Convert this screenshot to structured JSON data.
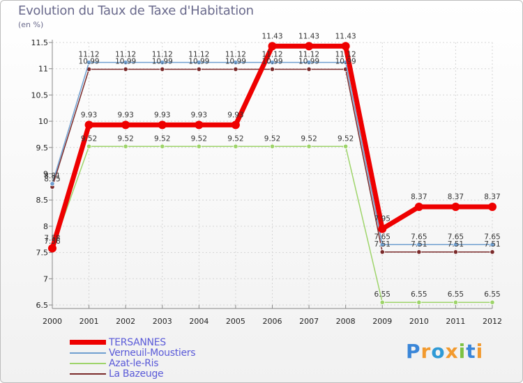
{
  "header": {
    "title": "Evolution du Taux de Taxe d'Habitation",
    "unit": "(en %)"
  },
  "brand": {
    "text": "Proxiti",
    "letters": [
      "P",
      "r",
      "o",
      "x",
      "i",
      "t",
      "i"
    ],
    "colors": [
      "#3a86d8",
      "#f29a2e",
      "#2f9ad6",
      "#f29a2e",
      "#7cc242",
      "#3a86d8",
      "#f29a2e"
    ]
  },
  "chart_data": {
    "type": "line",
    "title": "Evolution du Taux de Taxe d'Habitation",
    "ylabel": "(en %)",
    "xlabel": "",
    "ylim": [
      6.5,
      11.5
    ],
    "yticks": [
      "6.5",
      "7",
      "7.5",
      "8",
      "8.5",
      "9",
      "9.5",
      "10",
      "10.5",
      "11",
      "11.5"
    ],
    "categories": [
      "2000",
      "2001",
      "2002",
      "2003",
      "2004",
      "2005",
      "2006",
      "2007",
      "2008",
      "2009",
      "2010",
      "2011",
      "2012"
    ],
    "grid": true,
    "legend": "bottom-left",
    "series": [
      {
        "name": "TERSANNES",
        "color": "#ee0000",
        "values": [
          7.58,
          9.93,
          9.93,
          9.93,
          9.93,
          9.93,
          11.43,
          11.43,
          11.43,
          7.95,
          8.37,
          8.37,
          8.37
        ],
        "labels": [
          "7.58",
          "9.93",
          "9.93",
          "9.93",
          "9.93",
          "9.93",
          "11.43",
          "11.43",
          "11.43",
          "7.95",
          "8.37",
          "8.37",
          "8.37"
        ]
      },
      {
        "name": "Verneuil-Moustiers",
        "color": "#6f9fd0",
        "values": [
          8.81,
          11.12,
          11.12,
          11.12,
          11.12,
          11.12,
          11.12,
          11.12,
          11.12,
          7.65,
          7.65,
          7.65,
          7.65
        ],
        "labels": [
          "8.81",
          "11.12",
          "11.12",
          "11.12",
          "11.12",
          "11.12",
          "11.12",
          "11.12",
          "11.12",
          "7.65",
          "7.65",
          "7.65",
          "7.65"
        ]
      },
      {
        "name": "Azat-le-Ris",
        "color": "#9ed46a",
        "values": [
          7.56,
          9.52,
          9.52,
          9.52,
          9.52,
          9.52,
          9.52,
          9.52,
          9.52,
          6.55,
          6.55,
          6.55,
          6.55
        ],
        "labels": [
          "7.56",
          "9.52",
          "9.52",
          "9.52",
          "9.52",
          "9.52",
          "9.52",
          "9.52",
          "9.52",
          "6.55",
          "6.55",
          "6.55",
          "6.55"
        ]
      },
      {
        "name": "La Bazeuge",
        "color": "#7a2a2a",
        "values": [
          8.75,
          10.99,
          10.99,
          10.99,
          10.99,
          10.99,
          10.99,
          10.99,
          10.99,
          7.51,
          7.51,
          7.51,
          7.51
        ],
        "labels": [
          "8.75",
          "10.99",
          "10.99",
          "10.99",
          "10.99",
          "10.99",
          "10.99",
          "10.99",
          "10.99",
          "7.51",
          "7.51",
          "7.51",
          "7.51"
        ]
      }
    ]
  }
}
